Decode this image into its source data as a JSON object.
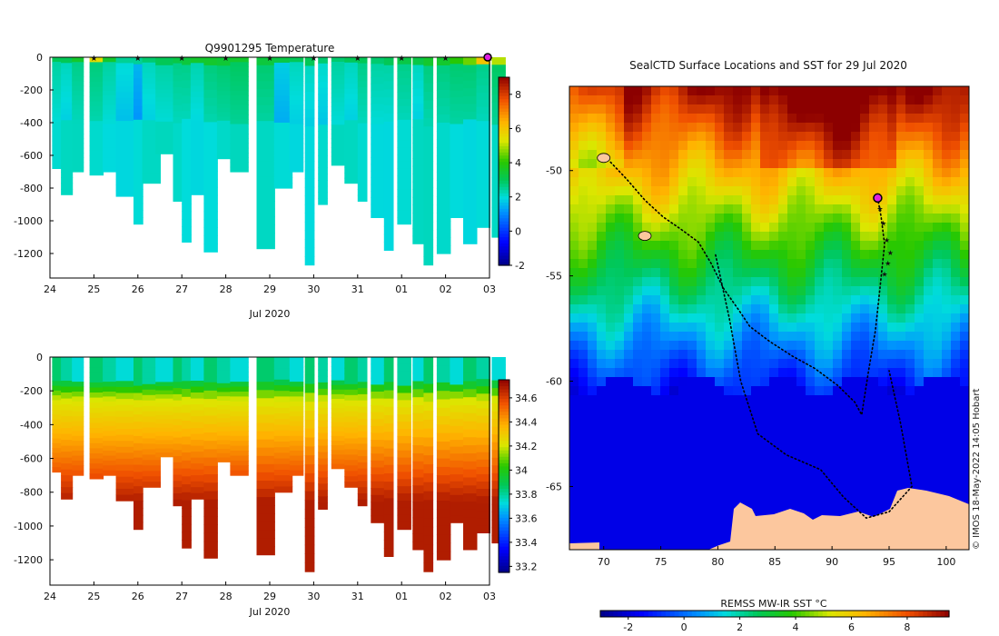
{
  "figure": {
    "credit": "© IMOS 18-May-2022 14:05 Hobart"
  },
  "chart_data": [
    {
      "id": "temperature",
      "type": "heatmap",
      "title": "Q9901295  Temperature",
      "xlabel": "Jul 2020",
      "x_ticks": [
        "24",
        "25",
        "26",
        "27",
        "28",
        "29",
        "30",
        "31",
        "01",
        "02",
        "03"
      ],
      "y_ticks": [
        "0",
        "-200",
        "-400",
        "-600",
        "-800",
        "-1000",
        "-1200"
      ],
      "ylim": [
        -1350,
        0
      ],
      "colorbar": {
        "min": -2,
        "max": 9,
        "ticks": [
          "-2",
          "0",
          "2",
          "4",
          "6",
          "8"
        ]
      },
      "profile_markers_day_offset": [
        1,
        2,
        3,
        4,
        5,
        6,
        7,
        8,
        9,
        10
      ],
      "profiles": [
        {
          "t": 0.05,
          "w": 0.2,
          "depth": 680,
          "surf": 3.0,
          "mid": 2.0
        },
        {
          "t": 0.25,
          "w": 0.25,
          "depth": 840,
          "surf": 3.0,
          "mid": 2.2
        },
        {
          "t": 0.5,
          "w": 0.25,
          "depth": 700,
          "surf": 3.5,
          "mid": 2.2
        },
        {
          "t": 0.9,
          "w": 0.3,
          "depth": 720,
          "surf": 5.5,
          "mid": 2.3
        },
        {
          "t": 1.2,
          "w": 0.3,
          "depth": 700,
          "surf": 3.5,
          "mid": 2.0
        },
        {
          "t": 1.5,
          "w": 0.4,
          "depth": 850,
          "surf": 2.5,
          "mid": 1.6
        },
        {
          "t": 1.9,
          "w": 0.2,
          "depth": 1020,
          "surf": 2.5,
          "mid": 1.5
        },
        {
          "t": 2.1,
          "w": 0.4,
          "depth": 770,
          "surf": 2.8,
          "mid": 1.8
        },
        {
          "t": 2.4,
          "w": 0.4,
          "depth": 590,
          "surf": 3.0,
          "mid": 2.0
        },
        {
          "t": 2.8,
          "w": 0.3,
          "depth": 880,
          "surf": 3.2,
          "mid": 2.2
        },
        {
          "t": 3.0,
          "w": 0.2,
          "depth": 1130,
          "surf": 3.3,
          "mid": 2.2
        },
        {
          "t": 3.2,
          "w": 0.3,
          "depth": 840,
          "surf": 3.5,
          "mid": 2.3
        },
        {
          "t": 3.5,
          "w": 0.3,
          "depth": 1190,
          "surf": 3.5,
          "mid": 2.3
        },
        {
          "t": 3.8,
          "w": 0.3,
          "depth": 620,
          "surf": 3.4,
          "mid": 2.4
        },
        {
          "t": 4.1,
          "w": 0.4,
          "depth": 700,
          "surf": 3.5,
          "mid": 2.5
        },
        {
          "t": 4.7,
          "w": 0.4,
          "depth": 1170,
          "surf": 3.3,
          "mid": 2.4
        },
        {
          "t": 5.1,
          "w": 0.4,
          "depth": 800,
          "surf": 3.2,
          "mid": 1.8
        },
        {
          "t": 5.45,
          "w": 0.3,
          "depth": 700,
          "surf": 3.0,
          "mid": 1.8
        },
        {
          "t": 5.8,
          "w": 0.2,
          "depth": 1270,
          "surf": 3.0,
          "mid": 1.8
        },
        {
          "t": 6.1,
          "w": 0.2,
          "depth": 900,
          "surf": 2.8,
          "mid": 1.7
        },
        {
          "t": 6.4,
          "w": 0.3,
          "depth": 660,
          "surf": 2.8,
          "mid": 2.0
        },
        {
          "t": 6.7,
          "w": 0.3,
          "depth": 770,
          "surf": 3.0,
          "mid": 2.2
        },
        {
          "t": 7.0,
          "w": 0.2,
          "depth": 880,
          "surf": 3.0,
          "mid": 2.2
        },
        {
          "t": 7.3,
          "w": 0.3,
          "depth": 980,
          "surf": 2.8,
          "mid": 2.0
        },
        {
          "t": 7.6,
          "w": 0.2,
          "depth": 1180,
          "surf": 3.0,
          "mid": 2.0
        },
        {
          "t": 7.9,
          "w": 0.3,
          "depth": 1020,
          "surf": 3.2,
          "mid": 2.2
        },
        {
          "t": 8.25,
          "w": 0.3,
          "depth": 1140,
          "surf": 3.2,
          "mid": 2.2
        },
        {
          "t": 8.5,
          "w": 0.2,
          "depth": 1270,
          "surf": 3.5,
          "mid": 2.3
        },
        {
          "t": 8.8,
          "w": 0.3,
          "depth": 1200,
          "surf": 3.5,
          "mid": 2.3
        },
        {
          "t": 9.1,
          "w": 0.3,
          "depth": 980,
          "surf": 4.0,
          "mid": 2.4
        },
        {
          "t": 9.4,
          "w": 0.3,
          "depth": 1140,
          "surf": 4.5,
          "mid": 2.4
        },
        {
          "t": 9.7,
          "w": 0.3,
          "depth": 1040,
          "surf": 6.0,
          "mid": 2.6
        },
        {
          "t": 10.05,
          "w": 0.3,
          "depth": 1100,
          "surf": 5.0,
          "mid": 2.5
        }
      ]
    },
    {
      "id": "salinity",
      "type": "heatmap",
      "title": "",
      "xlabel": "Jul 2020",
      "x_ticks": [
        "24",
        "25",
        "26",
        "27",
        "28",
        "29",
        "30",
        "31",
        "01",
        "02",
        "03"
      ],
      "y_ticks": [
        "0",
        "-200",
        "-400",
        "-600",
        "-800",
        "-1000",
        "-1200"
      ],
      "ylim": [
        -1350,
        0
      ],
      "colorbar": {
        "min": 33.15,
        "max": 34.75,
        "ticks": [
          "33.2",
          "33.4",
          "33.6",
          "33.8",
          "34",
          "34.2",
          "34.4",
          "34.6"
        ]
      },
      "deep_value": 34.68
    },
    {
      "id": "sst-map",
      "type": "heatmap",
      "title": "SealCTD Surface Locations and SST for 29 Jul 2020",
      "x_ticks": [
        "70",
        "75",
        "80",
        "85",
        "90",
        "95",
        "100"
      ],
      "y_ticks": [
        "-50",
        "-55",
        "-60",
        "-65"
      ],
      "xlim": [
        67,
        102
      ],
      "ylim": [
        -68,
        -46
      ],
      "colorbar": {
        "label": "REMSS MW-IR SST °C",
        "min": -3,
        "max": 9.5,
        "ticks": [
          "-2",
          "0",
          "2",
          "4",
          "6",
          "8"
        ]
      },
      "current_position": {
        "lon": 94.0,
        "lat": -51.3
      },
      "track": [
        {
          "lon": 70.6,
          "lat": -49.6
        },
        {
          "lon": 72.0,
          "lat": -50.4
        },
        {
          "lon": 73.6,
          "lat": -51.4
        },
        {
          "lon": 75.2,
          "lat": -52.2
        },
        {
          "lon": 76.8,
          "lat": -52.8
        },
        {
          "lon": 78.3,
          "lat": -53.4
        },
        {
          "lon": 79.4,
          "lat": -54.4
        },
        {
          "lon": 80.5,
          "lat": -55.6
        },
        {
          "lon": 81.8,
          "lat": -56.6
        },
        {
          "lon": 82.8,
          "lat": -57.4
        },
        {
          "lon": 84.5,
          "lat": -58.1
        },
        {
          "lon": 86.5,
          "lat": -58.8
        },
        {
          "lon": 88.5,
          "lat": -59.4
        },
        {
          "lon": 90.5,
          "lat": -60.2
        },
        {
          "lon": 92.0,
          "lat": -61.0
        },
        {
          "lon": 92.6,
          "lat": -61.6
        },
        {
          "lon": 93.2,
          "lat": -59.5
        },
        {
          "lon": 93.8,
          "lat": -57.6
        },
        {
          "lon": 94.2,
          "lat": -55.6
        },
        {
          "lon": 94.6,
          "lat": -53.5
        },
        {
          "lon": 94.3,
          "lat": -52.2
        },
        {
          "lon": 94.0,
          "lat": -51.3
        }
      ],
      "track2": [
        {
          "lon": 79.8,
          "lat": -54.0
        },
        {
          "lon": 81.0,
          "lat": -57.0
        },
        {
          "lon": 82.0,
          "lat": -60.0
        },
        {
          "lon": 83.5,
          "lat": -62.5
        },
        {
          "lon": 86.0,
          "lat": -63.5
        },
        {
          "lon": 89.0,
          "lat": -64.2
        },
        {
          "lon": 91.0,
          "lat": -65.5
        },
        {
          "lon": 93.0,
          "lat": -66.5
        },
        {
          "lon": 95.0,
          "lat": -66.2
        },
        {
          "lon": 97.0,
          "lat": -65.0
        },
        {
          "lon": 96.0,
          "lat": -62.0
        },
        {
          "lon": 95.0,
          "lat": -59.5
        }
      ],
      "recent_positions": [
        {
          "lon": 94.2,
          "lat": -51.8
        },
        {
          "lon": 94.5,
          "lat": -52.5
        },
        {
          "lon": 94.8,
          "lat": -53.3
        },
        {
          "lon": 95.1,
          "lat": -53.9
        },
        {
          "lon": 94.9,
          "lat": -54.4
        },
        {
          "lon": 94.6,
          "lat": -54.9
        }
      ],
      "islands": [
        {
          "lon": 70.0,
          "lat": -49.4
        },
        {
          "lon": 73.6,
          "lat": -53.1
        }
      ]
    }
  ]
}
